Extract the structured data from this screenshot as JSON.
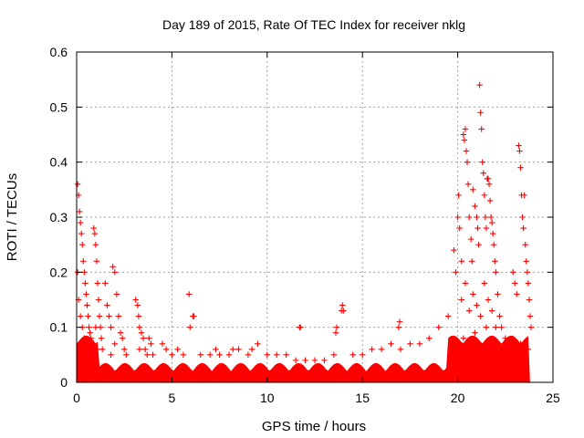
{
  "chart_data": {
    "type": "scatter",
    "title": "Day 189 of 2015, Rate Of TEC Index for receiver nklg",
    "xlabel": "GPS time / hours",
    "ylabel": "ROTI / TECUs",
    "xlim": [
      0,
      25
    ],
    "ylim": [
      0,
      0.6
    ],
    "xticks": [
      "0",
      "5",
      "10",
      "15",
      "20",
      "25"
    ],
    "yticks": [
      "0",
      "0.1",
      "0.2",
      "0.3",
      "0.4",
      "0.5",
      "0.6"
    ],
    "grid": true,
    "marker": "+",
    "color": "#ff0000",
    "series": [
      {
        "points": [
          [
            0.05,
            0.36
          ],
          [
            0.1,
            0.34
          ],
          [
            0.15,
            0.31
          ],
          [
            0.2,
            0.29
          ],
          [
            0.25,
            0.27
          ],
          [
            0.3,
            0.25
          ],
          [
            0.35,
            0.22
          ],
          [
            0.4,
            0.2
          ],
          [
            0.45,
            0.18
          ],
          [
            0.5,
            0.16
          ],
          [
            0.55,
            0.14
          ],
          [
            0.6,
            0.12
          ],
          [
            0.65,
            0.1
          ],
          [
            0.7,
            0.09
          ],
          [
            0.75,
            0.08
          ],
          [
            0.2,
            0.12
          ],
          [
            0.3,
            0.1
          ],
          [
            0.4,
            0.08
          ],
          [
            0.5,
            0.06
          ],
          [
            0.6,
            0.05
          ],
          [
            0.15,
            0.07
          ],
          [
            0.25,
            0.05
          ],
          [
            0.35,
            0.04
          ],
          [
            0.45,
            0.03
          ],
          [
            0.1,
            0.15
          ],
          [
            0.05,
            0.2
          ],
          [
            0.9,
            0.28
          ],
          [
            0.95,
            0.27
          ],
          [
            1.0,
            0.25
          ],
          [
            1.05,
            0.22
          ],
          [
            1.1,
            0.18
          ],
          [
            1.15,
            0.15
          ],
          [
            1.2,
            0.12
          ],
          [
            1.25,
            0.1
          ],
          [
            1.3,
            0.08
          ],
          [
            1.35,
            0.06
          ],
          [
            1.0,
            0.1
          ],
          [
            1.1,
            0.06
          ],
          [
            1.5,
            0.18
          ],
          [
            1.6,
            0.14
          ],
          [
            1.7,
            0.12
          ],
          [
            1.8,
            0.1
          ],
          [
            1.9,
            0.21
          ],
          [
            2.0,
            0.2
          ],
          [
            2.1,
            0.16
          ],
          [
            2.2,
            0.12
          ],
          [
            2.3,
            0.09
          ],
          [
            2.4,
            0.08
          ],
          [
            2.5,
            0.06
          ],
          [
            2.6,
            0.05
          ],
          [
            2.0,
            0.07
          ],
          [
            1.8,
            0.05
          ],
          [
            3.1,
            0.15
          ],
          [
            3.2,
            0.14
          ],
          [
            3.25,
            0.12
          ],
          [
            3.3,
            0.1
          ],
          [
            3.4,
            0.09
          ],
          [
            3.5,
            0.08
          ],
          [
            3.6,
            0.06
          ],
          [
            3.7,
            0.05
          ],
          [
            3.8,
            0.08
          ],
          [
            3.9,
            0.07
          ],
          [
            4.0,
            0.05
          ],
          [
            3.3,
            0.06
          ],
          [
            4.5,
            0.07
          ],
          [
            4.7,
            0.06
          ],
          [
            5.0,
            0.05
          ],
          [
            5.3,
            0.06
          ],
          [
            5.6,
            0.05
          ],
          [
            5.9,
            0.16
          ],
          [
            5.95,
            0.1
          ],
          [
            6.1,
            0.12
          ],
          [
            6.15,
            0.12
          ],
          [
            6.5,
            0.05
          ],
          [
            7.0,
            0.05
          ],
          [
            7.3,
            0.06
          ],
          [
            7.5,
            0.05
          ],
          [
            8.0,
            0.05
          ],
          [
            8.2,
            0.06
          ],
          [
            8.5,
            0.06
          ],
          [
            9.0,
            0.05
          ],
          [
            9.2,
            0.06
          ],
          [
            9.5,
            0.07
          ],
          [
            10.0,
            0.05
          ],
          [
            10.5,
            0.05
          ],
          [
            11.0,
            0.05
          ],
          [
            11.5,
            0.04
          ],
          [
            11.7,
            0.1
          ],
          [
            11.75,
            0.1
          ],
          [
            12.0,
            0.04
          ],
          [
            12.5,
            0.04
          ],
          [
            13.0,
            0.04
          ],
          [
            13.5,
            0.05
          ],
          [
            13.6,
            0.09
          ],
          [
            13.65,
            0.1
          ],
          [
            13.9,
            0.13
          ],
          [
            13.95,
            0.14
          ],
          [
            14.0,
            0.13
          ],
          [
            14.5,
            0.05
          ],
          [
            15.0,
            0.05
          ],
          [
            15.5,
            0.06
          ],
          [
            16.0,
            0.06
          ],
          [
            16.5,
            0.07
          ],
          [
            16.9,
            0.1
          ],
          [
            16.95,
            0.11
          ],
          [
            17.0,
            0.06
          ],
          [
            17.5,
            0.07
          ],
          [
            18.0,
            0.07
          ],
          [
            18.5,
            0.08
          ],
          [
            19.0,
            0.1
          ],
          [
            19.5,
            0.12
          ],
          [
            19.8,
            0.24
          ],
          [
            19.9,
            0.2
          ],
          [
            20.0,
            0.3
          ],
          [
            20.05,
            0.34
          ],
          [
            20.1,
            0.28
          ],
          [
            20.2,
            0.22
          ],
          [
            20.3,
            0.45
          ],
          [
            20.35,
            0.44
          ],
          [
            20.4,
            0.46
          ],
          [
            20.45,
            0.42
          ],
          [
            20.5,
            0.4
          ],
          [
            20.55,
            0.36
          ],
          [
            20.6,
            0.3
          ],
          [
            20.7,
            0.26
          ],
          [
            20.75,
            0.22
          ],
          [
            20.8,
            0.35
          ],
          [
            20.9,
            0.32
          ],
          [
            21.0,
            0.3
          ],
          [
            21.05,
            0.28
          ],
          [
            21.1,
            0.25
          ],
          [
            21.15,
            0.54
          ],
          [
            21.2,
            0.49
          ],
          [
            21.25,
            0.46
          ],
          [
            21.3,
            0.4
          ],
          [
            21.35,
            0.38
          ],
          [
            21.4,
            0.34
          ],
          [
            21.45,
            0.3
          ],
          [
            21.5,
            0.28
          ],
          [
            21.55,
            0.37
          ],
          [
            21.6,
            0.37
          ],
          [
            21.65,
            0.36
          ],
          [
            21.7,
            0.33
          ],
          [
            21.75,
            0.3
          ],
          [
            21.8,
            0.29
          ],
          [
            21.85,
            0.27
          ],
          [
            21.9,
            0.25
          ],
          [
            21.95,
            0.22
          ],
          [
            22.0,
            0.2
          ],
          [
            22.1,
            0.16
          ],
          [
            22.2,
            0.12
          ],
          [
            22.3,
            0.1
          ],
          [
            22.5,
            0.08
          ],
          [
            22.7,
            0.07
          ],
          [
            22.9,
            0.2
          ],
          [
            23.0,
            0.18
          ],
          [
            23.1,
            0.16
          ],
          [
            23.2,
            0.43
          ],
          [
            23.25,
            0.42
          ],
          [
            23.3,
            0.39
          ],
          [
            23.35,
            0.34
          ],
          [
            23.4,
            0.3
          ],
          [
            23.45,
            0.28
          ],
          [
            23.5,
            0.34
          ],
          [
            23.55,
            0.25
          ],
          [
            23.6,
            0.22
          ],
          [
            23.65,
            0.2
          ],
          [
            23.7,
            0.18
          ],
          [
            23.75,
            0.15
          ],
          [
            23.8,
            0.12
          ],
          [
            23.85,
            0.1
          ],
          [
            23.7,
            0.06
          ],
          [
            23.5,
            0.05
          ],
          [
            23.3,
            0.07
          ],
          [
            23.0,
            0.05
          ],
          [
            20.2,
            0.15
          ],
          [
            20.4,
            0.18
          ],
          [
            20.6,
            0.13
          ],
          [
            20.8,
            0.16
          ],
          [
            21.0,
            0.14
          ],
          [
            21.2,
            0.12
          ],
          [
            21.4,
            0.18
          ],
          [
            21.6,
            0.15
          ],
          [
            21.8,
            0.13
          ],
          [
            22.0,
            0.1
          ],
          [
            20.3,
            0.08
          ],
          [
            20.9,
            0.09
          ],
          [
            21.5,
            0.1
          ],
          [
            22.2,
            0.06
          ]
        ]
      }
    ]
  }
}
